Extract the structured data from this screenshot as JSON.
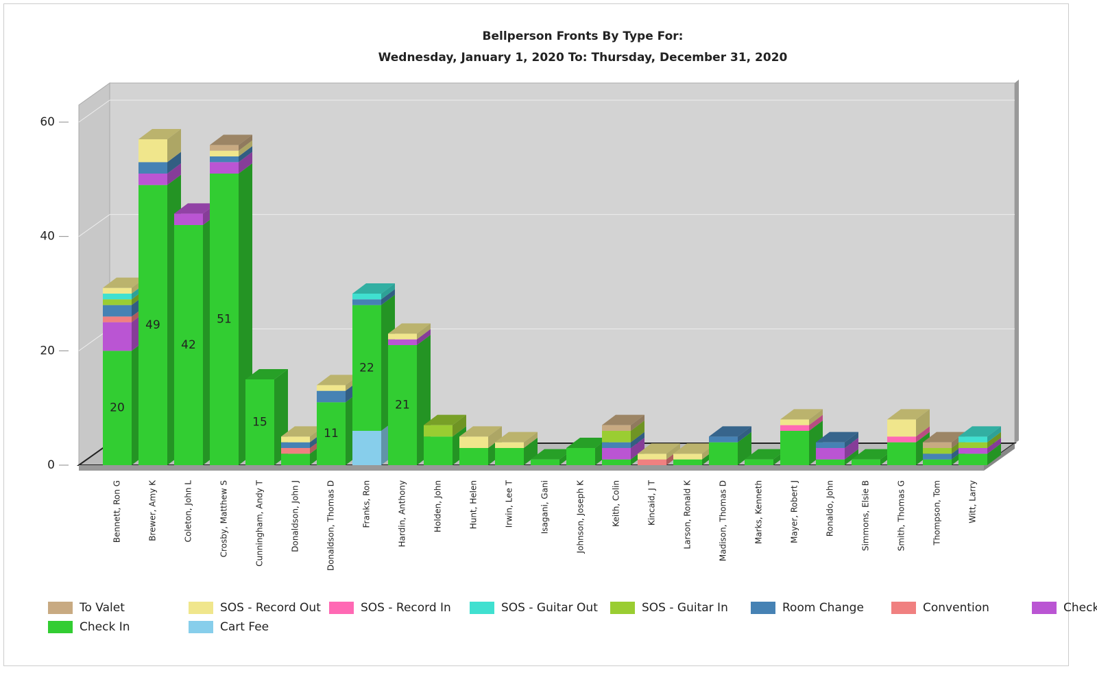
{
  "chart_data": {
    "type": "bar3d-stacked",
    "title": "Bellperson Fronts By Type For:",
    "subtitle": "Wednesday, January 1, 2020 To: Thursday, December 31, 2020",
    "categories": [
      "Bennett, Ron G",
      "Brewer, Amy K",
      "Coleton, John L",
      "Crosby, Matthew S",
      "Cunningham, Andy T",
      "Donaldson, John J",
      "Donaldson, Thomas D",
      "Franks, Ron",
      "Hardin, Anthony",
      "Holden, John",
      "Hunt, Helen",
      "Irwin, Lee T",
      "Isagani, Gani",
      "Johnson, Joseph K",
      "Keith, Colin",
      "Kincaid, J T",
      "Larson, Ronald K",
      "Madison, Thomas D",
      "Marks, Kenneth",
      "Mayer, Robert J",
      "Ronaldo, John",
      "Simmons, Elsie B",
      "Smith, Thomas G",
      "Thompson, Tom",
      "Witt, Larry"
    ],
    "series": [
      {
        "name": "Cart Fee",
        "color": "#87ceeb",
        "values": [
          0,
          0,
          0,
          0,
          0,
          0,
          0,
          6,
          0,
          0,
          0,
          0,
          0,
          0,
          0,
          0,
          0,
          0,
          0,
          0,
          0,
          0,
          0,
          0,
          0
        ]
      },
      {
        "name": "Check In",
        "color": "#32cd32",
        "values": [
          20,
          49,
          42,
          51,
          15,
          2,
          11,
          22,
          21,
          5,
          3,
          3,
          1,
          3,
          1,
          0,
          1,
          4,
          1,
          6,
          1,
          1,
          4,
          1,
          2
        ]
      },
      {
        "name": "Check Out",
        "color": "#ba55d3",
        "values": [
          5,
          2,
          2,
          2,
          0,
          0,
          0,
          0,
          1,
          0,
          0,
          0,
          0,
          0,
          2,
          0,
          0,
          0,
          0,
          0,
          2,
          0,
          0,
          0,
          1
        ]
      },
      {
        "name": "Convention",
        "color": "#f08080",
        "values": [
          1,
          0,
          0,
          0,
          0,
          1,
          0,
          0,
          0,
          0,
          0,
          0,
          0,
          0,
          0,
          1,
          0,
          0,
          0,
          0,
          0,
          0,
          0,
          0,
          0
        ]
      },
      {
        "name": "Room Change",
        "color": "#4682b4",
        "values": [
          2,
          2,
          0,
          1,
          0,
          1,
          2,
          1,
          0,
          0,
          0,
          0,
          0,
          0,
          1,
          0,
          0,
          1,
          0,
          0,
          1,
          0,
          0,
          1,
          0
        ]
      },
      {
        "name": "SOS - Guitar In",
        "color": "#9acd32",
        "values": [
          1,
          0,
          0,
          0,
          0,
          0,
          0,
          0,
          0,
          2,
          0,
          0,
          0,
          0,
          2,
          0,
          0,
          0,
          0,
          0,
          0,
          0,
          0,
          1,
          1
        ]
      },
      {
        "name": "SOS - Guitar Out",
        "color": "#40e0d0",
        "values": [
          1,
          0,
          0,
          0,
          0,
          0,
          0,
          1,
          0,
          0,
          0,
          0,
          0,
          0,
          0,
          0,
          0,
          0,
          0,
          0,
          0,
          0,
          0,
          0,
          1
        ]
      },
      {
        "name": "SOS - Record In",
        "color": "#ff69b4",
        "values": [
          0,
          0,
          0,
          0,
          0,
          0,
          0,
          0,
          0,
          0,
          0,
          0,
          0,
          0,
          0,
          0,
          0,
          0,
          0,
          1,
          0,
          0,
          1,
          0,
          0
        ]
      },
      {
        "name": "SOS - Record Out",
        "color": "#f0e68c",
        "values": [
          1,
          4,
          0,
          1,
          0,
          1,
          1,
          0,
          1,
          0,
          2,
          1,
          0,
          0,
          0,
          1,
          1,
          0,
          0,
          1,
          0,
          0,
          3,
          0,
          0
        ]
      },
      {
        "name": "To Valet",
        "color": "#c8aa82",
        "values": [
          0,
          0,
          0,
          1,
          0,
          0,
          0,
          0,
          0,
          0,
          0,
          0,
          0,
          0,
          1,
          0,
          0,
          0,
          0,
          0,
          0,
          0,
          0,
          1,
          0
        ]
      }
    ],
    "ylim": [
      0,
      60
    ],
    "yticks": [
      0,
      20,
      40,
      60
    ],
    "grid": true
  }
}
